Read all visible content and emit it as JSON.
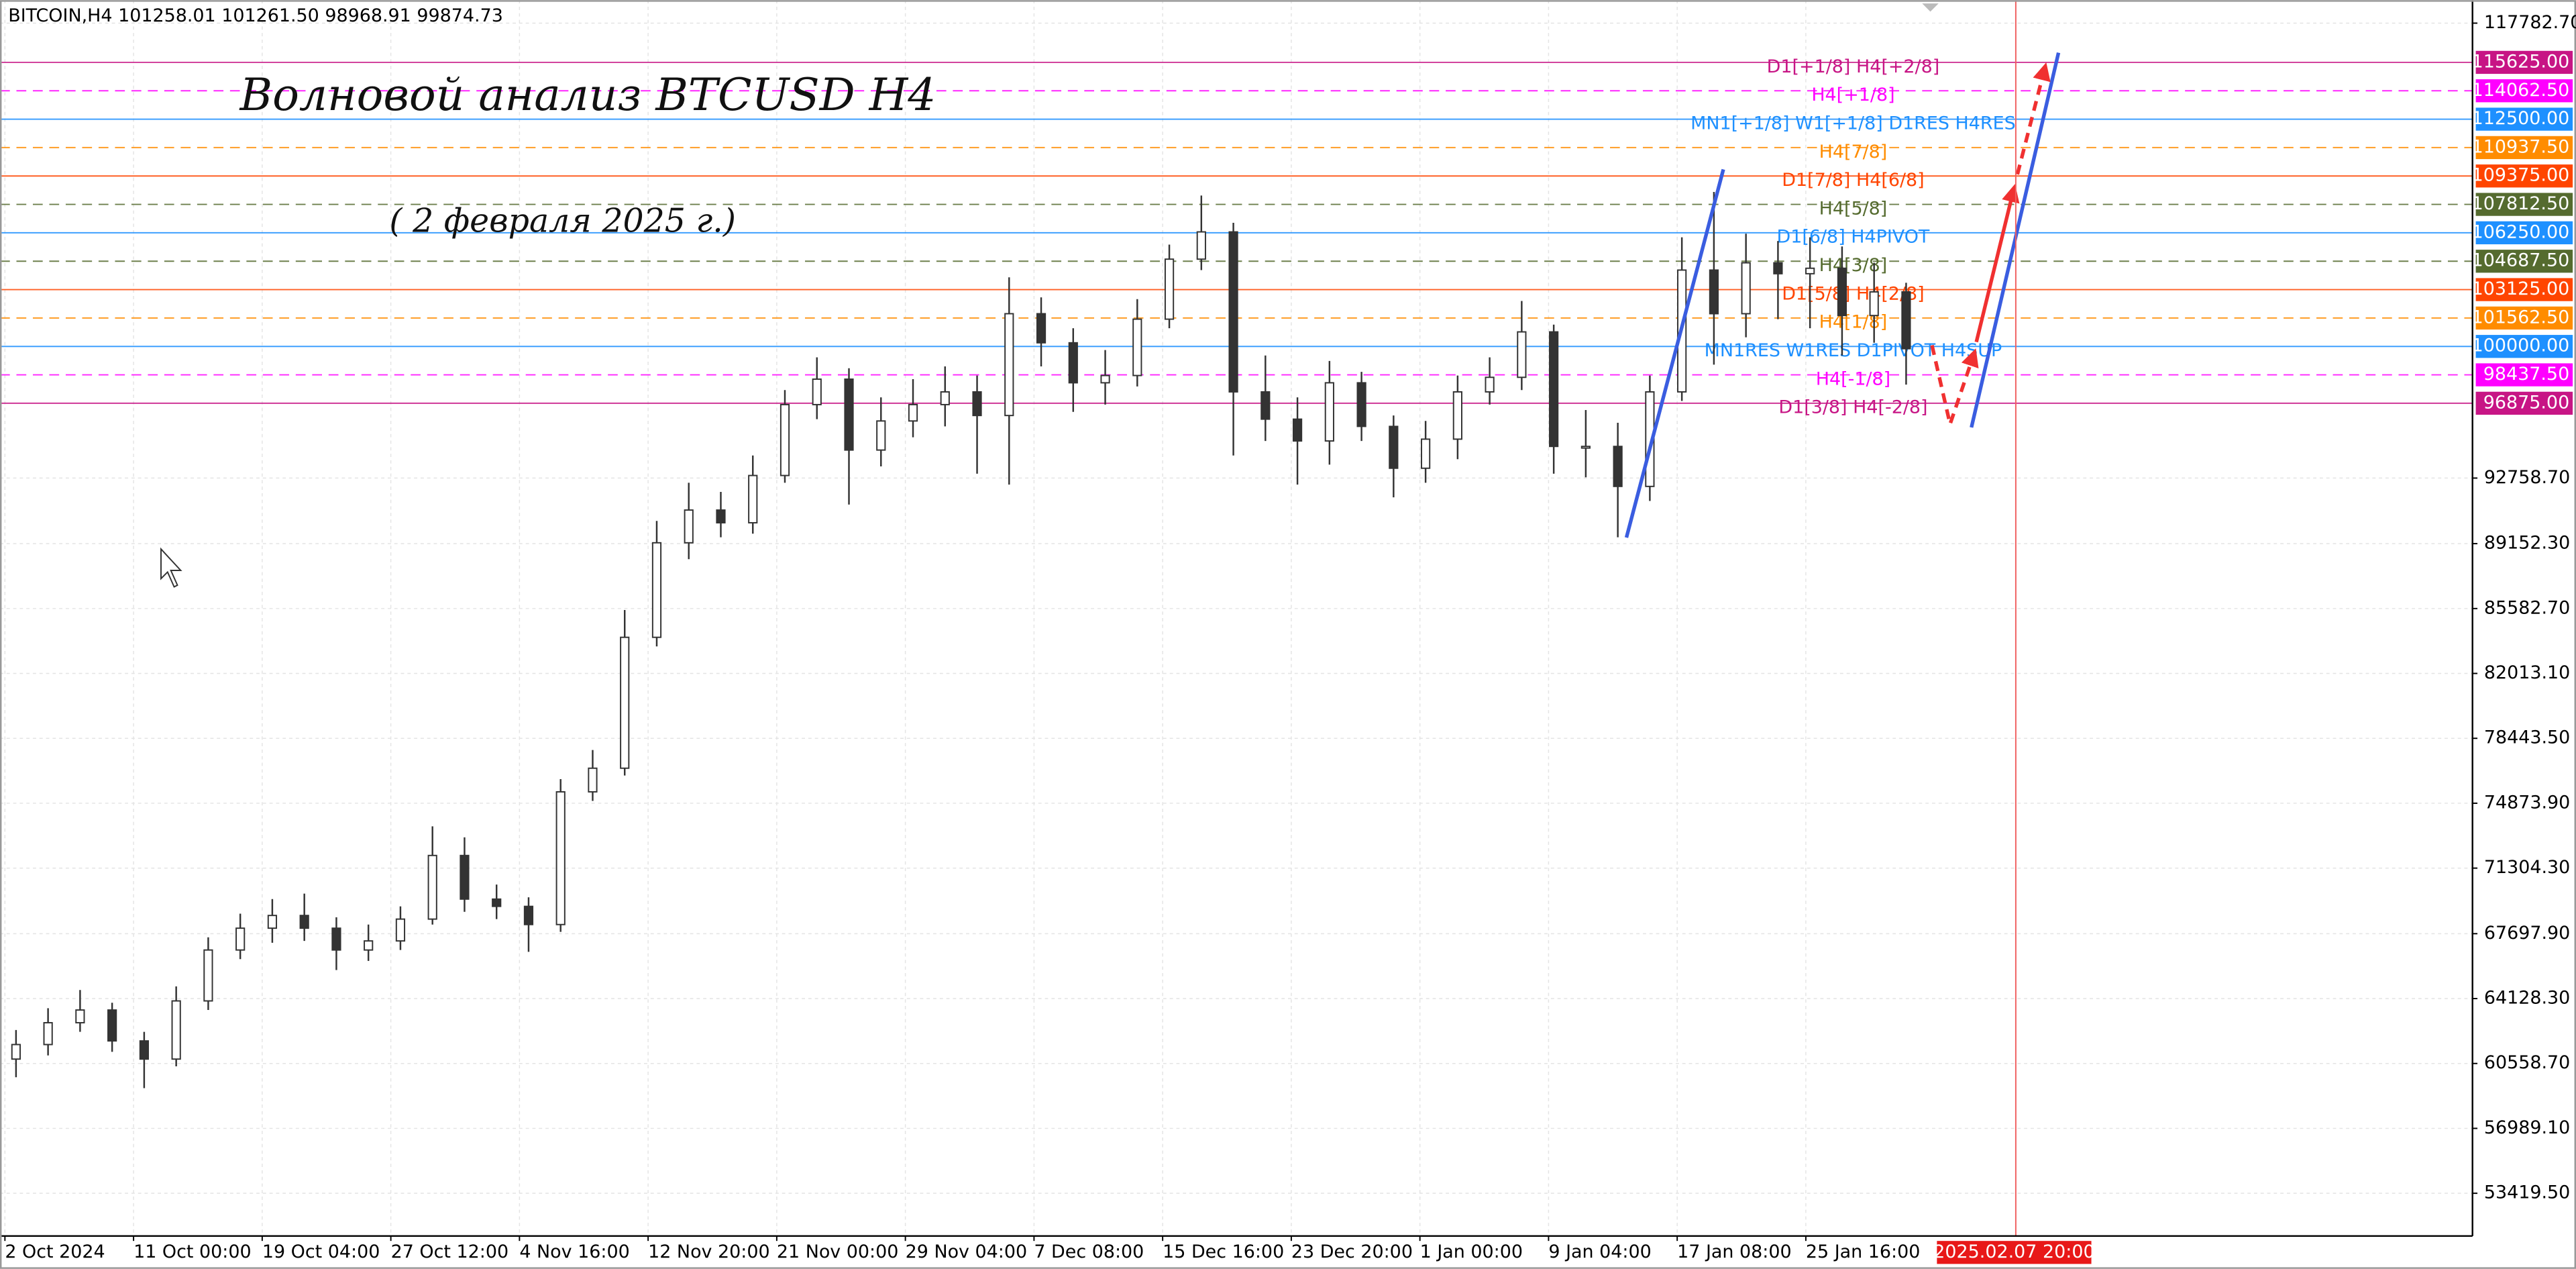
{
  "chart_data": {
    "type": "candlestick",
    "header": "BITCOIN,H4  101258.01 101261.50 98968.91 99874.73",
    "title": "Волновой анализ BTCUSD H4",
    "subtitle": "( 2 февраля 2025 г.)",
    "ylim": [
      51069,
      119048
    ],
    "yticks": [
      {
        "value": 117782.7,
        "label": "117782.70"
      },
      {
        "value": 92758.7,
        "label": "92758.70"
      },
      {
        "value": 89152.3,
        "label": "89152.30"
      },
      {
        "value": 85582.7,
        "label": "85582.70"
      },
      {
        "value": 82013.1,
        "label": "82013.10"
      },
      {
        "value": 78443.5,
        "label": "78443.50"
      },
      {
        "value": 74873.9,
        "label": "74873.90"
      },
      {
        "value": 71304.3,
        "label": "71304.30"
      },
      {
        "value": 67697.9,
        "label": "67697.90"
      },
      {
        "value": 64128.3,
        "label": "64128.30"
      },
      {
        "value": 60558.7,
        "label": "60558.70"
      },
      {
        "value": 56989.1,
        "label": "56989.10"
      },
      {
        "value": 53419.5,
        "label": "53419.50"
      }
    ],
    "xtick_labels": [
      "2 Oct 2024",
      "11 Oct 00:00",
      "19 Oct 04:00",
      "27 Oct 12:00",
      "4 Nov 16:00",
      "12 Nov 20:00",
      "21 Nov 00:00",
      "29 Nov 04:00",
      "7 Dec 08:00",
      "15 Dec 16:00",
      "23 Dec 20:00",
      "1 Jan 00:00",
      "9 Jan 04:00",
      "17 Jan 08:00",
      "25 Jan 16:00"
    ],
    "cursor_label": "2025.02.07 20:00",
    "grid": true,
    "up_color": "#ffffff",
    "down_color": "#333333",
    "open": [
      60800,
      61600,
      62800,
      63500,
      61800,
      60800,
      64000,
      66800,
      68000,
      68700,
      68000,
      66800,
      67300,
      68500,
      72000,
      69600,
      69200,
      68200,
      75500,
      76800,
      84000,
      89200,
      91000,
      90300,
      92900,
      96800,
      98200,
      94300,
      95900,
      96800,
      97500,
      96200,
      101800,
      100200,
      98000,
      98400,
      101500,
      104800,
      106300,
      97500,
      96000,
      94800,
      98000,
      95600,
      93300,
      94900,
      97500,
      98300,
      100800,
      94500,
      94500,
      92300,
      97500,
      104200,
      101800,
      104600,
      104000,
      104300,
      101700,
      103000
    ],
    "high": [
      62400,
      63600,
      64600,
      63900,
      62300,
      64800,
      67500,
      68800,
      69600,
      69900,
      68600,
      68200,
      69200,
      73600,
      73000,
      70400,
      69700,
      76200,
      77800,
      85500,
      90400,
      92500,
      92000,
      94000,
      97600,
      99400,
      98800,
      97200,
      98200,
      98900,
      98400,
      103800,
      102700,
      101000,
      99800,
      102600,
      105600,
      108300,
      106800,
      99500,
      97200,
      99200,
      98600,
      96200,
      95900,
      98400,
      99400,
      102500,
      101200,
      96500,
      95800,
      98400,
      106000,
      108500,
      106200,
      105800,
      106000,
      105500,
      104600,
      103500
    ],
    "low": [
      59800,
      61000,
      62300,
      61200,
      59200,
      60400,
      63500,
      66300,
      67200,
      67300,
      65700,
      66200,
      66800,
      68200,
      68900,
      68500,
      66700,
      67800,
      75000,
      76400,
      83500,
      88300,
      89500,
      89700,
      92500,
      96000,
      91300,
      93400,
      95000,
      95600,
      93000,
      92400,
      98900,
      96400,
      96800,
      97800,
      101000,
      104200,
      94000,
      94800,
      92400,
      93500,
      94800,
      91700,
      92500,
      93800,
      96800,
      97600,
      93000,
      92800,
      89500,
      91500,
      97000,
      99000,
      100500,
      101500,
      101000,
      99500,
      100200,
      97900
    ],
    "close": [
      61600,
      62800,
      63500,
      61800,
      60800,
      64000,
      66800,
      68000,
      68700,
      68000,
      66800,
      67300,
      68500,
      72000,
      69600,
      69200,
      68200,
      75500,
      76800,
      84000,
      89200,
      91000,
      90300,
      92900,
      96800,
      98200,
      94300,
      95900,
      96800,
      97500,
      96200,
      101800,
      100200,
      98000,
      98400,
      101500,
      104800,
      106300,
      97500,
      96000,
      94800,
      98000,
      95600,
      93300,
      94900,
      97500,
      98300,
      100800,
      94500,
      94500,
      92300,
      97500,
      104200,
      101800,
      104600,
      104000,
      104300,
      101700,
      103000,
      99875
    ],
    "levels": [
      {
        "value": 115625,
        "label": "115625.00",
        "text": "D1[+1/8] H4[+2/8]",
        "color": "#c71585",
        "dashed": false
      },
      {
        "value": 114062.5,
        "label": "114062.50",
        "text": "H4[+1/8]",
        "color": "#ff00ff",
        "dashed": true
      },
      {
        "value": 112500,
        "label": "112500.00",
        "text": "MN1[+1/8] W1[+1/8] D1RES H4RES",
        "color": "#1e90ff",
        "dashed": false
      },
      {
        "value": 110937.5,
        "label": "110937.50",
        "text": "H4[7/8]",
        "color": "#ff8c00",
        "dashed": true
      },
      {
        "value": 109375,
        "label": "109375.00",
        "text": "D1[7/8] H4[6/8]",
        "color": "#ff4500",
        "dashed": false
      },
      {
        "value": 107812.5,
        "label": "107812.50",
        "text": "H4[5/8]",
        "color": "#556b2f",
        "dashed": true
      },
      {
        "value": 106250,
        "label": "106250.00",
        "text": "D1[6/8] H4PIVOT",
        "color": "#1e90ff",
        "dashed": false
      },
      {
        "value": 104687.5,
        "label": "104687.50",
        "text": "H4[3/8]",
        "color": "#556b2f",
        "dashed": true
      },
      {
        "value": 103125,
        "label": "103125.00",
        "text": "D1[5/8] H4[2/8]",
        "color": "#ff4500",
        "dashed": false
      },
      {
        "value": 101562.5,
        "label": "101562.50",
        "text": "H4[1/8]",
        "color": "#ff8c00",
        "dashed": true
      },
      {
        "value": 100000,
        "label": "100000.00",
        "text": "MN1RES W1RES D1PIVOT H4SUP",
        "color": "#1e90ff",
        "dashed": false
      },
      {
        "value": 98437.5,
        "label": "98437.50",
        "text": "H4[-1/8]",
        "color": "#ff00ff",
        "dashed": true
      },
      {
        "value": 96875,
        "label": "96875.00",
        "text": "D1[3/8] H4[-2/8]",
        "color": "#c71585",
        "dashed": false
      }
    ]
  }
}
